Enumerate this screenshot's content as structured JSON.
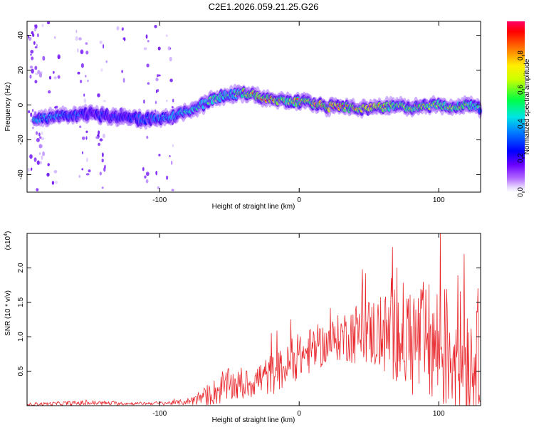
{
  "title": "C2E1.2026.059.21.25.G26",
  "chart_data": [
    {
      "type": "heatmap",
      "name": "spectrogram",
      "xlabel": "Height of straight line (km)",
      "ylabel": "Frequency (Hz)",
      "xlim": [
        -195,
        130
      ],
      "ylim": [
        -50,
        48
      ],
      "xticks": [
        -100,
        0,
        100
      ],
      "yticks": [
        -40,
        -20,
        0,
        20,
        40
      ],
      "colorbar": {
        "label": "Normalized spectral amplitude",
        "range": [
          0,
          1
        ],
        "ticks": [
          0.0,
          0.2,
          0.4,
          0.6,
          0.8
        ],
        "colormap": [
          "#ffffff",
          "#c8a8ff",
          "#7a00ff",
          "#0000ff",
          "#00ccff",
          "#00ff66",
          "#ffff00",
          "#ff8800",
          "#ff0000",
          "#ff0066"
        ]
      },
      "ridge": {
        "x": [
          -185,
          -170,
          -150,
          -130,
          -110,
          -95,
          -80,
          -70,
          -60,
          -50,
          -40,
          -30,
          -20,
          -10,
          0,
          10,
          20,
          30,
          40,
          50,
          60,
          70,
          80,
          90,
          100,
          110,
          120,
          130
        ],
        "freq": [
          -8,
          -6,
          -5,
          -7,
          -8,
          -7,
          -4,
          0,
          4,
          6,
          7,
          5,
          3,
          2,
          2,
          1,
          -1,
          -1,
          -2,
          -2,
          -1,
          -1,
          -1,
          -1,
          0,
          -1,
          0,
          -2
        ],
        "peak_amplitude": [
          0.45,
          0.4,
          0.3,
          0.3,
          0.35,
          0.45,
          0.5,
          0.55,
          0.6,
          0.55,
          0.8,
          0.9,
          0.9,
          0.8,
          0.8,
          0.85,
          0.9,
          0.9,
          0.85,
          0.9,
          0.8,
          0.7,
          0.8,
          0.75,
          0.7,
          0.8,
          0.7,
          0.5
        ]
      }
    },
    {
      "type": "line",
      "name": "snr",
      "xlabel": "Height of straight line (km)",
      "ylabel": "SNR (10 * v/v)",
      "yscale_label": "(x10",
      "yscale_exp": "4",
      "xlim": [
        -195,
        130
      ],
      "ylim": [
        0,
        2.5
      ],
      "xticks": [
        -100,
        0,
        100
      ],
      "yticks": [
        0.5,
        1.0,
        1.5,
        2.0
      ],
      "yticklabels": [
        "0.5",
        "1.0",
        "1.5",
        "2.0"
      ],
      "color": "#e8262b",
      "envelope_x": [
        -195,
        -150,
        -120,
        -90,
        -80,
        -70,
        -60,
        -50,
        -40,
        -30,
        -20,
        -10,
        0,
        10,
        20,
        30,
        40,
        50,
        60,
        70,
        80,
        90,
        100,
        110,
        120,
        130
      ],
      "envelope_mean": [
        0.02,
        0.04,
        0.03,
        0.04,
        0.06,
        0.12,
        0.2,
        0.3,
        0.28,
        0.38,
        0.45,
        0.55,
        0.7,
        0.82,
        0.9,
        1.0,
        1.05,
        1.08,
        1.02,
        1.05,
        0.95,
        0.9,
        0.85,
        0.8,
        0.75,
        0.6
      ],
      "envelope_spread": [
        0.02,
        0.04,
        0.02,
        0.03,
        0.05,
        0.12,
        0.2,
        0.25,
        0.2,
        0.25,
        0.3,
        0.3,
        0.3,
        0.35,
        0.3,
        0.35,
        0.45,
        0.5,
        0.6,
        0.75,
        0.85,
        0.9,
        0.95,
        0.95,
        0.9,
        0.7
      ],
      "peaks": [
        {
          "x": 67,
          "y": 2.3
        },
        {
          "x": 101,
          "y": 2.5
        },
        {
          "x": 70,
          "y": 2.0
        },
        {
          "x": 118,
          "y": 2.2
        },
        {
          "x": 128,
          "y": 1.7
        },
        {
          "x": -20,
          "y": 1.05
        },
        {
          "x": -6,
          "y": 1.25
        }
      ]
    }
  ]
}
